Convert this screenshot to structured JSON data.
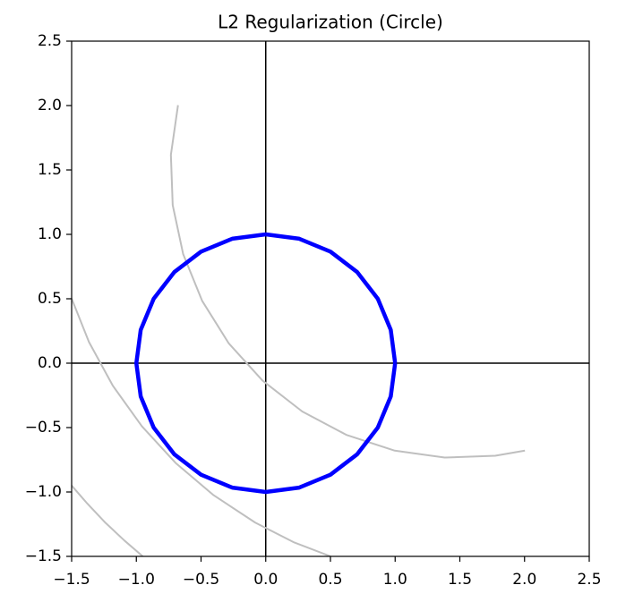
{
  "chart_data": {
    "type": "line",
    "title": "L2 Regularization (Circle)",
    "xlim": [
      -1.5,
      2.5
    ],
    "ylim": [
      -1.5,
      2.5
    ],
    "xticks": [
      {
        "value": -1.5,
        "label": "−1.5"
      },
      {
        "value": -1.0,
        "label": "−1.0"
      },
      {
        "value": -0.5,
        "label": "−0.5"
      },
      {
        "value": 0,
        "label": "0.0"
      },
      0.5,
      {
        "value": 1,
        "label": "1.0"
      },
      1.5,
      {
        "value": 2,
        "label": "2.0"
      },
      2.5
    ],
    "yticks": [
      {
        "value": -1.5,
        "label": "−1.5"
      },
      {
        "value": -1.0,
        "label": "−1.0"
      },
      {
        "value": -0.5,
        "label": "−0.5"
      },
      {
        "value": 0,
        "label": "0.0"
      },
      0.5,
      {
        "value": 1,
        "label": "1.0"
      },
      1.5,
      {
        "value": 2,
        "label": "2.0"
      },
      2.5
    ],
    "axis_lines": true,
    "series": [
      {
        "color": "#bfbfbf",
        "width": 2,
        "x": [
          -0.678,
          -0.733,
          -0.719,
          -0.638,
          -0.492,
          -0.286,
          -0.025,
          0.282,
          0.626,
          0.997,
          1.383,
          1.773,
          2.003
        ],
        "y": [
          2.003,
          1.617,
          1.227,
          0.846,
          0.485,
          0.154,
          -0.135,
          -0.375,
          -0.558,
          -0.679,
          -0.733,
          -0.719,
          -0.679
        ]
      },
      {
        "color": "#bfbfbf",
        "width": 2,
        "x": [
          -1.5,
          -1.366,
          -1.181,
          -0.957,
          -0.697,
          -0.403,
          -0.081,
          0.214,
          0.502
        ],
        "y": [
          0.502,
          0.164,
          -0.176,
          -0.49,
          -0.774,
          -1.025,
          -1.238,
          -1.389,
          -1.5
        ]
      },
      {
        "color": "#bfbfbf",
        "width": 2,
        "x": [
          -1.5,
          -1.378,
          -1.239,
          -1.091,
          -0.95
        ],
        "y": [
          -0.95,
          -1.091,
          -1.239,
          -1.378,
          -1.5
        ]
      },
      {
        "color": "#0000ff",
        "width": 4.5,
        "x": [
          1,
          0.966,
          0.866,
          0.707,
          0.5,
          0.259,
          0,
          -0.259,
          -0.5,
          -0.707,
          -0.866,
          -0.966,
          -1,
          -0.966,
          -0.866,
          -0.707,
          -0.5,
          -0.259,
          0,
          0.259,
          0.5,
          0.707,
          0.866,
          0.966,
          1
        ],
        "y": [
          0,
          0.259,
          0.5,
          0.707,
          0.866,
          0.966,
          1,
          0.966,
          0.866,
          0.707,
          0.5,
          0.259,
          0,
          -0.259,
          -0.5,
          -0.707,
          -0.866,
          -0.966,
          -1,
          -0.966,
          -0.866,
          -0.707,
          -0.5,
          -0.259,
          0
        ]
      }
    ]
  }
}
